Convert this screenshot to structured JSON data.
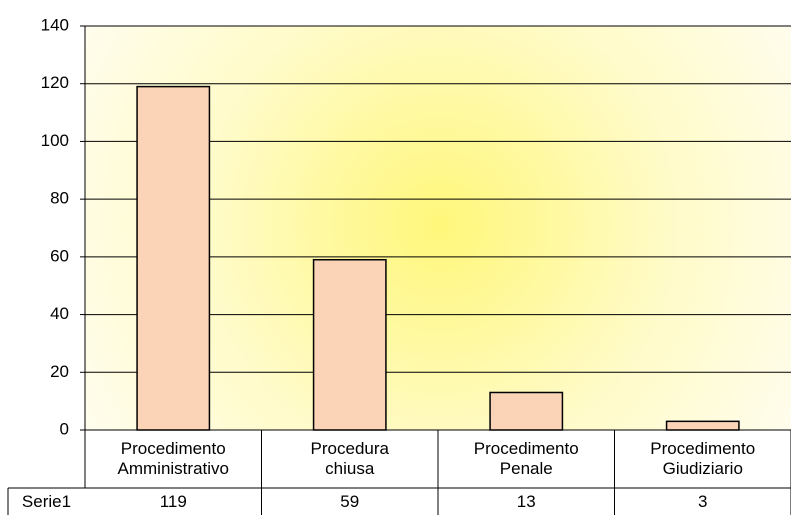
{
  "chart_data": {
    "type": "bar",
    "categories": [
      "Procedimento Amministrativo",
      "Procedura chiusa",
      "Procedimento Penale",
      "Procedimento Giudiziario"
    ],
    "series": [
      {
        "name": "Serie1",
        "color": "#fbd3b6",
        "values": [
          119,
          59,
          13,
          3
        ]
      }
    ],
    "ylim": [
      0,
      140
    ],
    "yticks": [
      0,
      20,
      40,
      60,
      80,
      100,
      120,
      140
    ],
    "grid": true,
    "data_table": true
  }
}
